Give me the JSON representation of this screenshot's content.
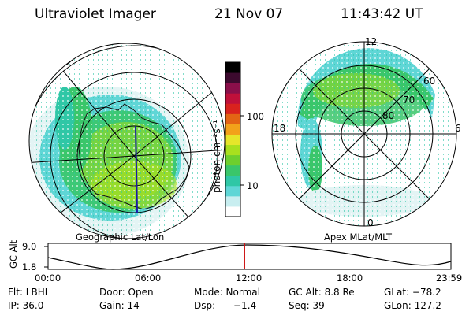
{
  "header": {
    "instrument": "Ultraviolet Imager",
    "date": "21 Nov 07",
    "time": "11:43:42 UT"
  },
  "left_panel": {
    "projection_label": "Geographic Lat/Lon"
  },
  "right_panel": {
    "projection_label": "Apex MLat/MLT",
    "mlt_labels": {
      "top": "12",
      "bottom": "0",
      "left": "18",
      "right": "6"
    },
    "mlat_labels": [
      "60",
      "70",
      "80"
    ]
  },
  "colorbar": {
    "unit_label": "photon cm⁻²s⁻¹",
    "tick_labels": [
      "100",
      "10"
    ],
    "scale": "log",
    "colors": [
      "#ffffff",
      "#c8eef0",
      "#5fd6d6",
      "#2fc7a6",
      "#3ac66a",
      "#6ecf2e",
      "#a9e01e",
      "#e6e62a",
      "#f2a21a",
      "#e36414",
      "#d9221e",
      "#c0103a",
      "#8a0f4a",
      "#3c0a2e",
      "#000000"
    ]
  },
  "timeline": {
    "axis_label": "GC Alt",
    "y_ticks": [
      "9.0",
      "1.8"
    ],
    "x_ticks": [
      "00:00",
      "06:00",
      "12:00",
      "18:00",
      "23:59"
    ],
    "current_fraction": 0.488
  },
  "info": {
    "row1": {
      "filter": "Flt: LBHL",
      "door": "Door: Open",
      "mode": "Mode: Normal",
      "gc_alt": "GC Alt: 8.8 Re",
      "glat": "GLat: −78.2"
    },
    "row2": {
      "ip": "IP: 36.0",
      "gain": "Gain: 14",
      "dsp_label": "Dsp:",
      "dsp_value": "−1.4",
      "seq": "Seq: 39",
      "glon": "GLon: 127.2"
    }
  },
  "palette": {
    "marker": "#cc1111",
    "meridian": "#1a1aa8"
  }
}
